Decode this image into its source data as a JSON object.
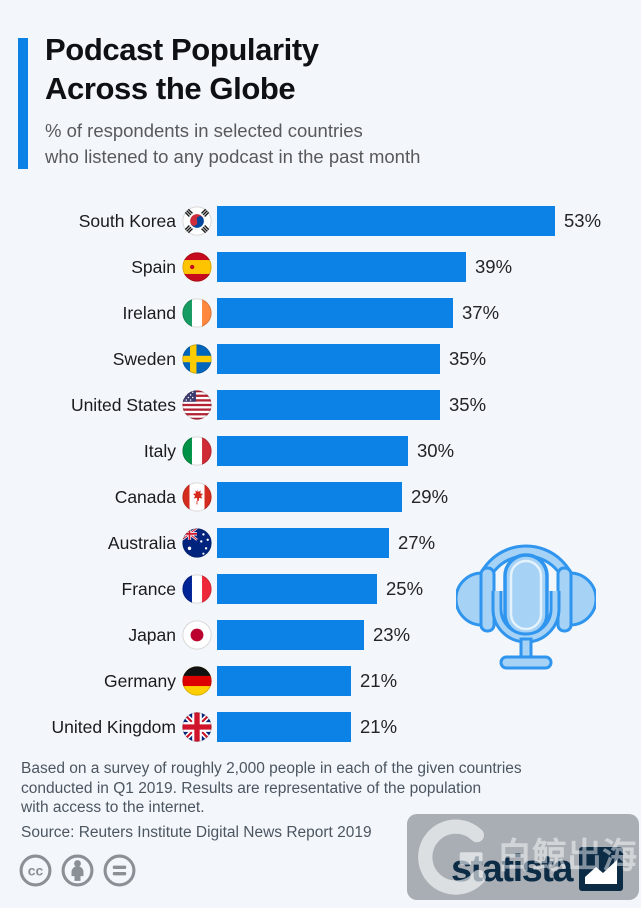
{
  "colors": {
    "background": "#f3f6fa",
    "bar": "#0d82e6",
    "accent": "#0d82e6",
    "title": "#0f1013",
    "subtitle": "#57595c",
    "footnote": "#4c5661",
    "license_icon": "#8b9096",
    "brand_navy": "#0c2b45",
    "illustration_fill": "#a6d2f6",
    "illustration_stroke": "#2f95ee",
    "watermark_gray": "#9ba1a7"
  },
  "header": {
    "title_line1": "Podcast Popularity",
    "title_line2": "Across the Globe",
    "subtitle_line1": "% of respondents in selected countries",
    "subtitle_line2": "who listened to any podcast in the past month"
  },
  "chart_data": {
    "type": "bar",
    "orientation": "horizontal",
    "title": "Podcast Popularity Across the Globe",
    "subtitle": "% of respondents in selected countries who listened to any podcast in the past month",
    "categories": [
      "South Korea",
      "Spain",
      "Ireland",
      "Sweden",
      "United States",
      "Italy",
      "Canada",
      "Australia",
      "France",
      "Japan",
      "Germany",
      "United Kingdom"
    ],
    "values": [
      53,
      39,
      37,
      35,
      35,
      30,
      29,
      27,
      25,
      23,
      21,
      21
    ],
    "value_suffix": "%",
    "flag_codes": [
      "kr",
      "es",
      "ie",
      "se",
      "us",
      "it",
      "ca",
      "au",
      "fr",
      "jp",
      "de",
      "gb"
    ],
    "xlim": [
      0,
      56
    ],
    "grid": false,
    "legend": false,
    "value_labels": true,
    "xlabel": "",
    "ylabel": ""
  },
  "footer": {
    "note_lines": [
      "Based on a survey of roughly 2,000 people in each of the given countries",
      "conducted in Q1 2019. Results are representative of the population",
      "with access to the internet."
    ],
    "source": "Source: Reuters Institute Digital News Report 2019",
    "license_icons": [
      "cc-icon",
      "attribution-person-icon",
      "equal-sign-icon"
    ]
  },
  "branding": {
    "logo_text": "statista",
    "logo_mark": "statista-chart-mark"
  },
  "watermark": {
    "text": "白鲸出海",
    "logo": "dolphin-g-logo"
  },
  "icons": {
    "illustration": "headphones-microphone-illustration",
    "flags": "circular-country-flag-icons"
  }
}
